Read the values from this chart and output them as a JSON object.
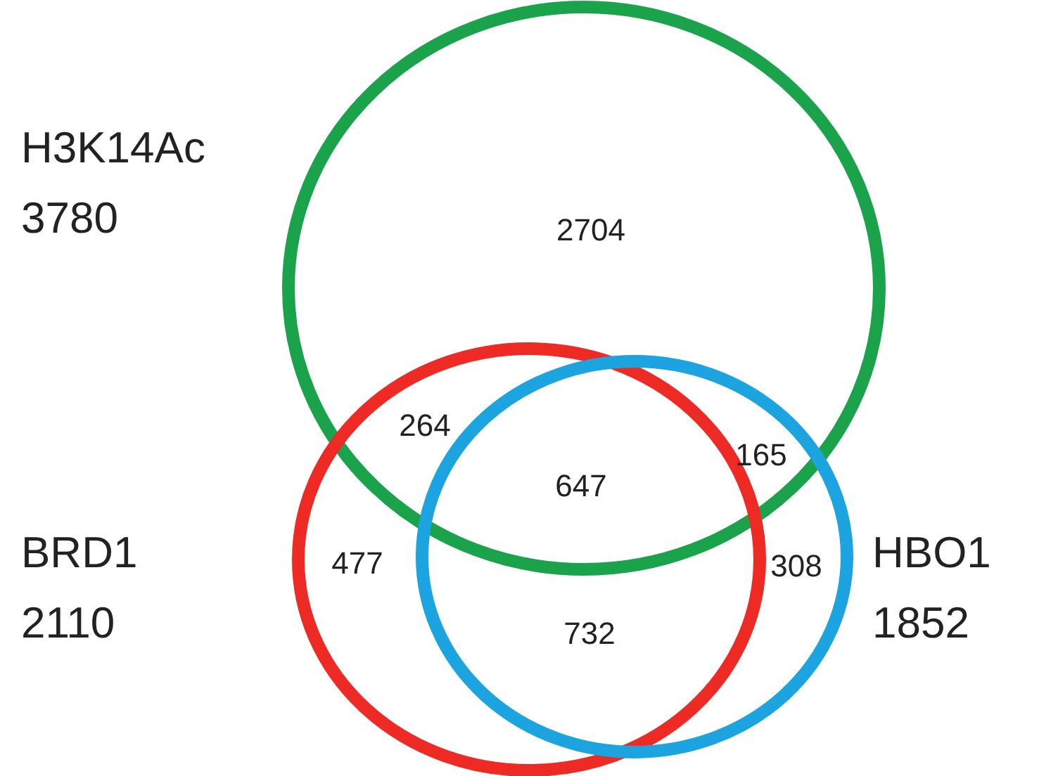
{
  "chart_data": {
    "type": "other",
    "categories": [
      "H3K14Ac",
      "BRD1",
      "HBO1"
    ],
    "values": [
      3780,
      2110,
      1852
    ],
    "data_labels": true,
    "colors": [
      "#1aa34a",
      "#ee2a24",
      "#1ba4e0"
    ],
    "annotations": [
      "2704",
      "264",
      "647",
      "165",
      "477",
      "732",
      "308"
    ]
  }
}
